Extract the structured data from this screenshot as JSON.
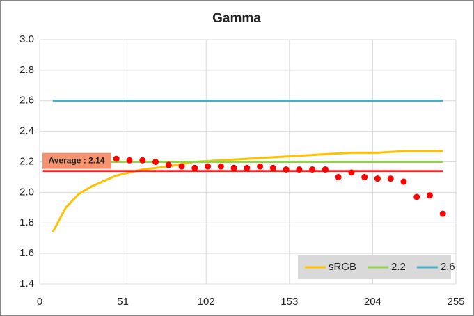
{
  "chart_data": {
    "type": "scatter",
    "title": "Gamma",
    "xlim": [
      0,
      255
    ],
    "xticks": [
      0,
      51,
      102,
      153,
      204,
      255
    ],
    "ylim": [
      1.4,
      3.0
    ],
    "yticks": [
      1.4,
      1.6,
      1.8,
      {
        "value": 2.0,
        "label": "2.0"
      },
      2.2,
      2.4,
      2.6,
      2.8,
      {
        "value": 3.0,
        "label": "3.0"
      }
    ],
    "grid": true,
    "legend": "lower right",
    "points": {
      "color": "#ff0000",
      "x": [
        47,
        55,
        63,
        71,
        79,
        87,
        95,
        103,
        111,
        119,
        127,
        135,
        143,
        151,
        159,
        167,
        175,
        183,
        191,
        199,
        207,
        215,
        223,
        231,
        239,
        247
      ],
      "values": [
        2.22,
        2.21,
        2.21,
        2.2,
        2.18,
        2.17,
        2.16,
        2.17,
        2.17,
        2.16,
        2.16,
        2.17,
        2.16,
        2.15,
        2.15,
        2.15,
        2.15,
        2.1,
        2.13,
        2.1,
        2.09,
        2.09,
        2.07,
        1.97,
        1.98,
        1.86
      ]
    },
    "average": {
      "label": "Average : 2.14",
      "value": 2.14,
      "color": "#ff0000",
      "x": [
        2,
        247
      ]
    },
    "series": [
      {
        "name": "sRGB",
        "color": "#ffc000",
        "x": [
          8,
          16,
          24,
          32,
          47,
          63,
          79,
          95,
          111,
          127,
          143,
          159,
          175,
          191,
          207,
          223,
          239,
          247
        ],
        "values": [
          1.74,
          1.9,
          1.99,
          2.04,
          2.11,
          2.15,
          2.17,
          2.2,
          2.21,
          2.22,
          2.23,
          2.24,
          2.25,
          2.26,
          2.26,
          2.27,
          2.27,
          2.27
        ]
      },
      {
        "name": "2.2",
        "color": "#92d050",
        "x": [
          8,
          247
        ],
        "values": [
          2.2,
          2.2
        ]
      },
      {
        "name": "2.6",
        "color": "#4bacc6",
        "x": [
          8,
          247
        ],
        "values": [
          2.6,
          2.6
        ]
      }
    ]
  }
}
